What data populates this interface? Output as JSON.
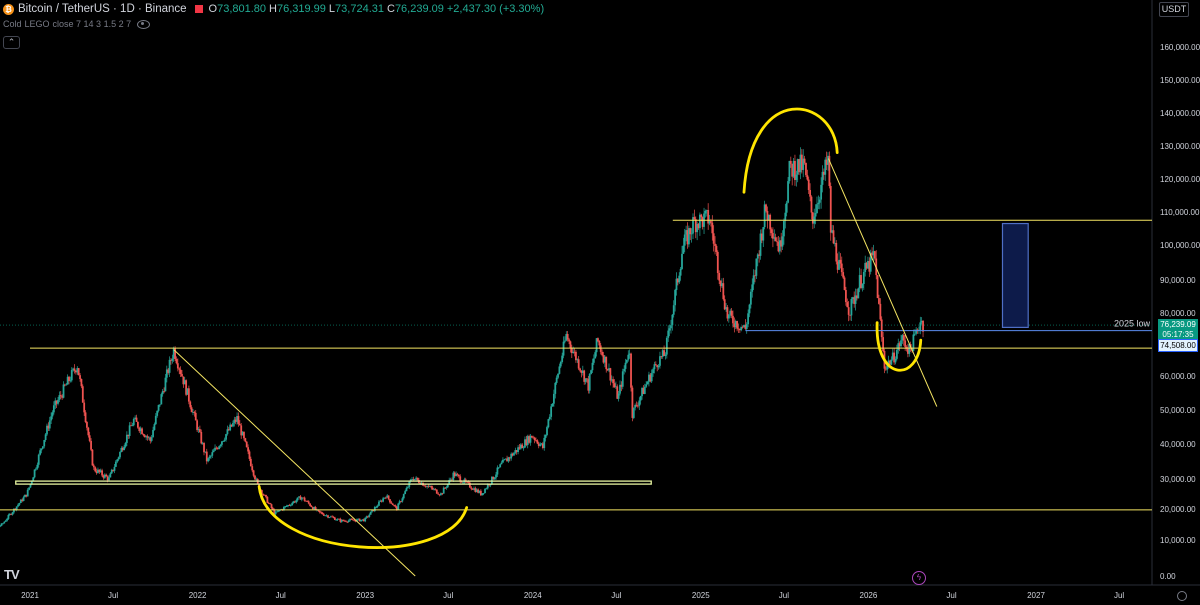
{
  "header": {
    "symbol": "Bitcoin / TetherUS · 1D · Binance",
    "open_label": "O",
    "open": "73,801.80",
    "high_label": "H",
    "high": "76,319.99",
    "low_label": "L",
    "low": "73,724.31",
    "close_label": "C",
    "close": "76,239.09",
    "change": "+2,437.30 (+3.30%)"
  },
  "indicator": {
    "name": "Cold",
    "type": "LEGO",
    "params": "close 7 14 3 1.5 2 7"
  },
  "currency": "USDT",
  "price_tag": {
    "price": "76,239.09",
    "countdown": "05:17:35"
  },
  "low_tag": "74,508.00",
  "annotation_2025_low": "2025 low",
  "colors": {
    "up": "#26a69a",
    "down": "#ef5350",
    "line": "#f5e663",
    "marker": "#ffe500",
    "box": "#0d1b4a",
    "box_border": "#4f6fc6"
  },
  "icons": [
    "bitcoin-icon",
    "flag-icon",
    "eye-icon",
    "collapse-chevron-icon",
    "tradingview-logo-icon",
    "lightning-icon",
    "settings-icon"
  ],
  "chart_data": {
    "type": "candlestick",
    "title": "Bitcoin / TetherUS · 1D · Binance",
    "y_ticks": [
      0,
      10000,
      20000,
      30000,
      40000,
      50000,
      60000,
      70000,
      80000,
      90000,
      100000,
      110000,
      120000,
      130000,
      140000,
      150000,
      160000
    ],
    "y_tick_labels": [
      "0.00",
      "10,000.00",
      "20,000.00",
      "30,000.00",
      "40,000.00",
      "50,000.00",
      "60,000.00",
      "70,000.00",
      "80,000.00",
      "90,000.00",
      "100,000.00",
      "110,000.00",
      "120,000.00",
      "130,000.00",
      "140,000.00",
      "150,000.00",
      "160,000.00"
    ],
    "x_tick_labels": [
      "2021",
      "Jul",
      "2022",
      "Jul",
      "2023",
      "Jul",
      "2024",
      "Jul",
      "2025",
      "Jul",
      "2026",
      "Jul",
      "2027",
      "Jul"
    ],
    "x_ticks": [
      "2021-01-01",
      "2021-07-01",
      "2022-01-01",
      "2022-07-01",
      "2023-01-01",
      "2023-07-01",
      "2024-01-01",
      "2024-07-01",
      "2025-01-01",
      "2025-07-01",
      "2026-01-01",
      "2026-07-01",
      "2027-01-01",
      "2027-07-01"
    ],
    "y_scale": "log",
    "ylim": [
      0,
      165000
    ],
    "price_path": [
      [
        "2020-09-01",
        10200
      ],
      [
        "2020-11-01",
        15000
      ],
      [
        "2020-12-25",
        25000
      ],
      [
        "2021-02-20",
        50000
      ],
      [
        "2021-04-14",
        63500
      ],
      [
        "2021-05-19",
        33000
      ],
      [
        "2021-06-22",
        30000
      ],
      [
        "2021-08-15",
        47000
      ],
      [
        "2021-09-20",
        41000
      ],
      [
        "2021-11-10",
        68500
      ],
      [
        "2022-01-22",
        35000
      ],
      [
        "2022-03-28",
        47500
      ],
      [
        "2022-05-12",
        28000
      ],
      [
        "2022-06-18",
        18500
      ],
      [
        "2022-08-15",
        24000
      ],
      [
        "2022-09-20",
        19000
      ],
      [
        "2022-11-09",
        16200
      ],
      [
        "2022-12-31",
        16500
      ],
      [
        "2023-02-15",
        24500
      ],
      [
        "2023-03-10",
        20000
      ],
      [
        "2023-04-14",
        30500
      ],
      [
        "2023-06-15",
        25000
      ],
      [
        "2023-07-13",
        31500
      ],
      [
        "2023-09-11",
        25000
      ],
      [
        "2023-10-24",
        34000
      ],
      [
        "2023-12-31",
        42500
      ],
      [
        "2024-01-23",
        39000
      ],
      [
        "2024-03-14",
        73000
      ],
      [
        "2024-05-01",
        57000
      ],
      [
        "2024-05-21",
        71500
      ],
      [
        "2024-07-05",
        53500
      ],
      [
        "2024-07-29",
        69500
      ],
      [
        "2024-08-05",
        49000
      ],
      [
        "2024-09-30",
        65000
      ],
      [
        "2024-10-15",
        67000
      ],
      [
        "2024-11-22",
        99000
      ],
      [
        "2024-12-17",
        107000
      ],
      [
        "2025-01-20",
        108000
      ],
      [
        "2025-02-28",
        79000
      ],
      [
        "2025-04-08",
        75000
      ],
      [
        "2025-05-22",
        111000
      ],
      [
        "2025-06-22",
        99000
      ],
      [
        "2025-07-14",
        123000
      ],
      [
        "2025-08-14",
        124000
      ],
      [
        "2025-09-01",
        108000
      ],
      [
        "2025-10-06",
        126200
      ],
      [
        "2025-10-10",
        105000
      ],
      [
        "2025-11-21",
        80500
      ],
      [
        "2025-12-15",
        90000
      ],
      [
        "2026-01-14",
        97000
      ],
      [
        "2026-02-05",
        63000
      ],
      [
        "2026-02-25",
        66000
      ],
      [
        "2026-03-15",
        72000
      ],
      [
        "2026-04-01",
        68000
      ],
      [
        "2026-04-25",
        78000
      ],
      [
        "2026-04-30",
        76239
      ]
    ],
    "horizontal_levels": [
      {
        "value": 69000,
        "start": "2021-01-01"
      },
      {
        "value": 107500,
        "start": "2024-11-01"
      },
      {
        "value": 19700,
        "start": "2020-09-01"
      },
      {
        "value": 74508,
        "start": "2025-04-08",
        "label": "2025 low"
      }
    ],
    "zone": {
      "low": 28300,
      "high": 29300,
      "start": "2020-12-01",
      "end": "2024-09-15"
    },
    "trendlines": [
      {
        "from": [
          "2021-11-10",
          68500
        ],
        "to": [
          "2023-04-20",
          0
        ]
      },
      {
        "from": [
          "2025-10-06",
          126200
        ],
        "to": [
          "2026-05-30",
          51000
        ]
      }
    ],
    "projection_box": {
      "low": 75500,
      "high": 106500,
      "start": "2026-10-20",
      "end": "2026-12-15"
    }
  }
}
